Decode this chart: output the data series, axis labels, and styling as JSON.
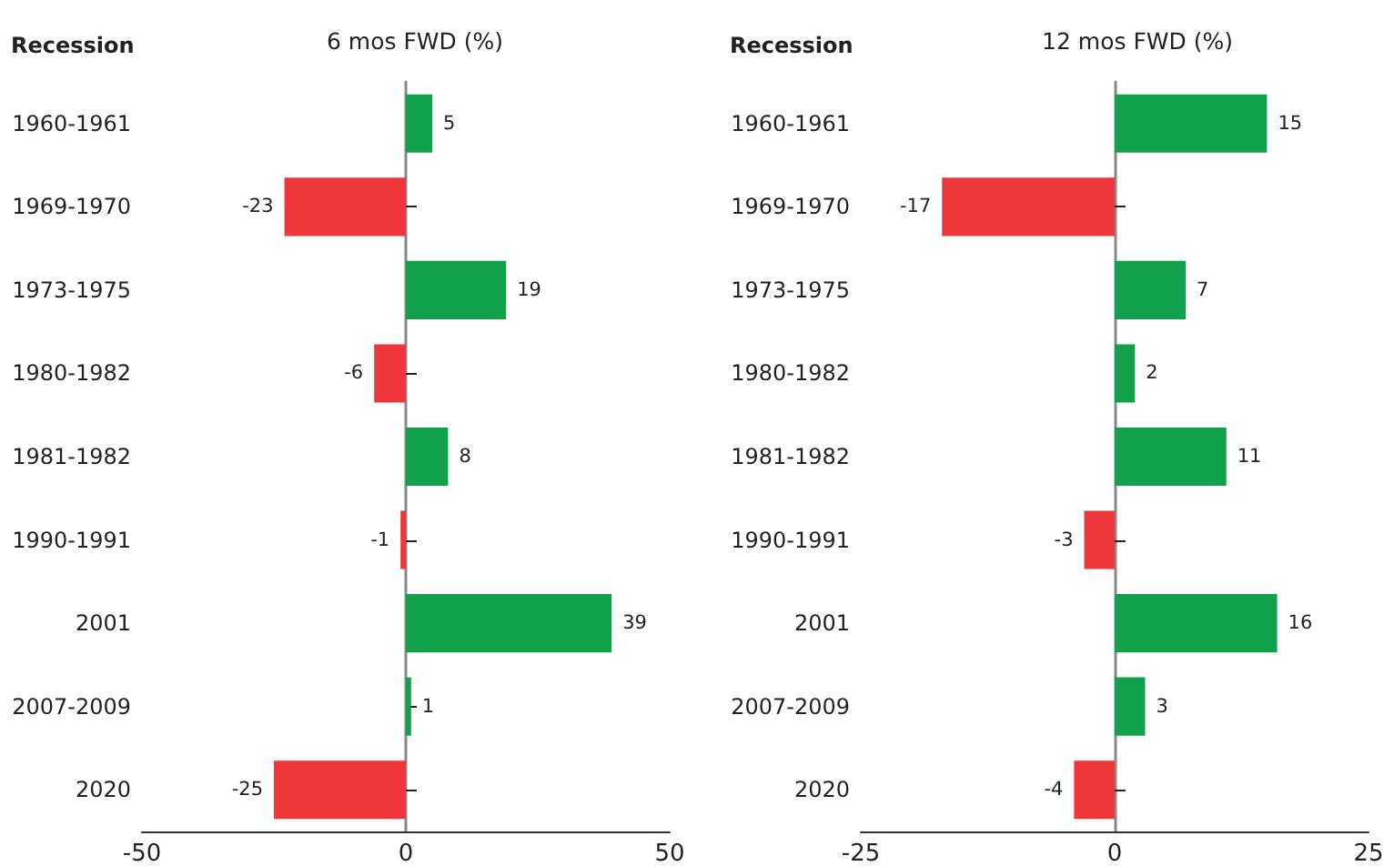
{
  "chart_data": [
    {
      "type": "bar",
      "orientation": "horizontal",
      "title": "6 mos FWD (%)",
      "ylabel": "Recession",
      "categories": [
        "1960-1961",
        "1969-1970",
        "1973-1975",
        "1980-1982",
        "1981-1982",
        "1990-1991",
        "2001",
        "2007-2009",
        "2020"
      ],
      "values": [
        5,
        -23,
        19,
        -6,
        8,
        -1,
        39,
        1,
        -25
      ],
      "colors": [
        "#12a14b",
        "#ef363b",
        "#12a14b",
        "#ef363b",
        "#12a14b",
        "#ef363b",
        "#12a14b",
        "#12a14b",
        "#ef363b"
      ],
      "xlim": [
        -50,
        50
      ],
      "xticks": [
        -50,
        0,
        50
      ],
      "data_labels": true
    },
    {
      "type": "bar",
      "orientation": "horizontal",
      "title": "12 mos FWD (%)",
      "ylabel": "Recession",
      "categories": [
        "1960-1961",
        "1969-1970",
        "1973-1975",
        "1980-1982",
        "1981-1982",
        "1990-1991",
        "2001",
        "2007-2009",
        "2020"
      ],
      "values": [
        15,
        -17,
        7,
        2,
        11,
        -3,
        16,
        3,
        -4
      ],
      "colors": [
        "#12a14b",
        "#ef363b",
        "#12a14b",
        "#12a14b",
        "#12a14b",
        "#ef363b",
        "#12a14b",
        "#12a14b",
        "#ef363b"
      ],
      "xlim": [
        -25,
        25
      ],
      "xticks": [
        -25,
        0,
        25
      ],
      "data_labels": true
    }
  ]
}
